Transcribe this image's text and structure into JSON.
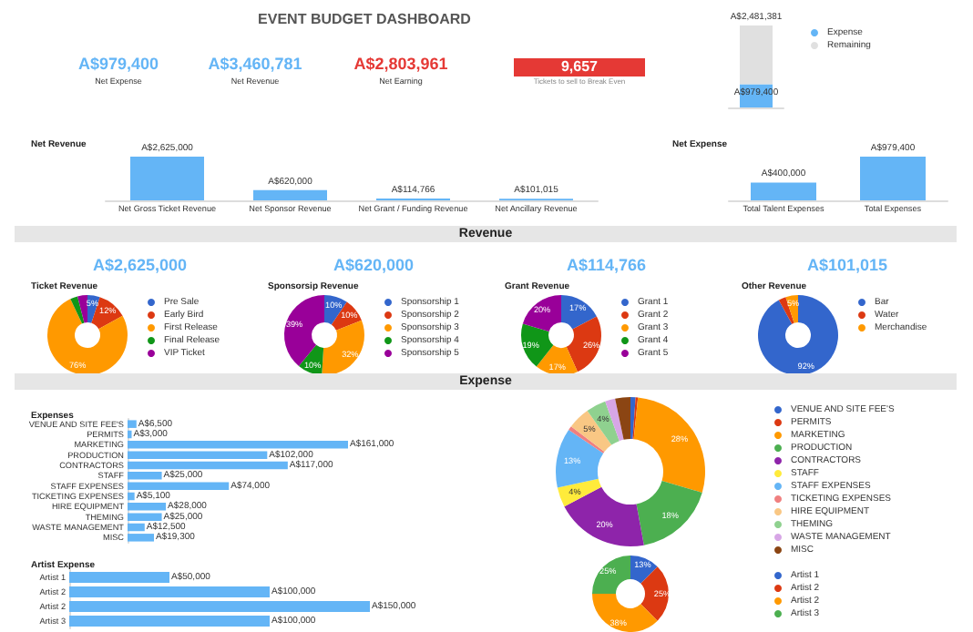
{
  "chart_data": [
    {
      "type": "other",
      "title": "EVENT BUDGET DASHBOARD",
      "annotations": [
        "A$979,400",
        "Net Expense",
        "A$3,460,781",
        "Net Revenue",
        "A$2,803,961",
        "Net Earning",
        "9,657",
        "Tickets to sell to Break Even"
      ]
    },
    {
      "type": "bar",
      "stacked": true,
      "categories": [
        null
      ],
      "legend": "right",
      "series": [
        {
          "name": "Expense",
          "color": "#64b5f6",
          "values": [
            979400
          ],
          "value_labels": [
            "A$979,400"
          ]
        },
        {
          "name": "Remaining",
          "color": "#e0e0e0",
          "values": [
            2481381
          ],
          "value_labels": [
            "A$2,481,381"
          ]
        }
      ]
    },
    {
      "type": "bar",
      "title": "Net Revenue",
      "categories": [
        "Net Gross Ticket Revenue",
        "Net Sponsor Revenue",
        "Net Grant / Funding Revenue",
        "Net Ancillary Revenue"
      ],
      "values": [
        2625000,
        620000,
        114766,
        101015
      ],
      "color": "#64b5f6",
      "value_labels": [
        "A$2,625,000",
        "A$620,000",
        "A$114,766",
        "A$101,015"
      ]
    },
    {
      "type": "bar",
      "title": "Net Expense",
      "categories": [
        "Total Talent Expenses",
        "Total Expenses"
      ],
      "values": [
        400000,
        979400
      ],
      "color": "#64b5f6",
      "value_labels": [
        "A$400,000",
        "A$979,400"
      ]
    },
    {
      "type": "other",
      "title": "Revenue"
    },
    {
      "type": "donut",
      "title": "Ticket Revenue",
      "subtitle": "A$2,625,000",
      "legend": "right",
      "categories": [
        "Pre Sale",
        "Early Bird",
        "First Release",
        "Final Release",
        "VIP Ticket"
      ],
      "values": [
        5,
        12,
        76,
        3,
        4
      ],
      "colors": [
        "#3366cc",
        "#dc3912",
        "#ff9900",
        "#109618",
        "#990099"
      ],
      "value_labels": [
        "5%",
        "12%",
        "76%",
        null,
        null
      ]
    },
    {
      "type": "donut",
      "title": "Sponsorsip Revenue",
      "subtitle": "A$620,000",
      "legend": "right",
      "categories": [
        "Sponsorship 1",
        "Sponsorship 2",
        "Sponsorship 3",
        "Sponsorship 4",
        "Sponsorship 5"
      ],
      "values": [
        9.5,
        9.5,
        32,
        10,
        39
      ],
      "colors": [
        "#3366cc",
        "#dc3912",
        "#ff9900",
        "#109618",
        "#990099"
      ],
      "value_labels": [
        "10%",
        "10%",
        "32%",
        "10%",
        "39%"
      ]
    },
    {
      "type": "donut",
      "title": "Grant Revenue",
      "subtitle": "A$114,766",
      "legend": "right",
      "categories": [
        "Grant 1",
        "Grant 2",
        "Grant 3",
        "Grant 4",
        "Grant 5"
      ],
      "values": [
        17.3,
        26,
        17.3,
        19,
        20.4
      ],
      "colors": [
        "#3366cc",
        "#dc3912",
        "#ff9900",
        "#109618",
        "#990099"
      ],
      "value_labels": [
        "17%",
        "26%",
        "17%",
        "19%",
        "20%"
      ]
    },
    {
      "type": "donut",
      "title": "Other Revenue",
      "subtitle": "A$101,015",
      "legend": "right",
      "categories": [
        "Bar",
        "Water",
        "Merchandise"
      ],
      "values": [
        92,
        3,
        5
      ],
      "colors": [
        "#3366cc",
        "#dc3912",
        "#ff9900"
      ],
      "value_labels": [
        "92%",
        null,
        "5%"
      ]
    },
    {
      "type": "other",
      "title": "Expense"
    },
    {
      "type": "bar",
      "orientation": "horizontal",
      "title": "Expenses",
      "categories": [
        "VENUE AND SITE FEE'S",
        "PERMITS",
        "MARKETING",
        "PRODUCTION",
        "CONTRACTORS",
        "STAFF",
        "STAFF EXPENSES",
        "TICKETING EXPENSES",
        "HIRE EQUIPMENT",
        "THEMING",
        "WASTE MANAGEMENT",
        "MISC"
      ],
      "values": [
        6500,
        3000,
        161000,
        102000,
        117000,
        25000,
        74000,
        5100,
        28000,
        25000,
        12500,
        19300
      ],
      "color": "#64b5f6",
      "value_labels": [
        "A$6,500",
        "A$3,000",
        "A$161,000",
        "A$102,000",
        "A$117,000",
        "A$25,000",
        "A$74,000",
        "A$5,100",
        "A$28,000",
        "A$25,000",
        "A$12,500",
        "A$19,300"
      ]
    },
    {
      "type": "donut",
      "legend": "right",
      "categories": [
        "VENUE AND SITE FEE'S",
        "PERMITS",
        "MARKETING",
        "PRODUCTION",
        "CONTRACTORS",
        "STAFF",
        "STAFF EXPENSES",
        "TICKETING EXPENSES",
        "HIRE EQUIPMENT",
        "THEMING",
        "WASTE MANAGEMENT",
        "MISC"
      ],
      "values": [
        1.1,
        0.5,
        27.9,
        17.6,
        20.2,
        4.3,
        12.9,
        0.9,
        4.8,
        4.3,
        2.2,
        3.3
      ],
      "colors": [
        "#3366cc",
        "#dc3912",
        "#ff9900",
        "#4caf50",
        "#8e24aa",
        "#ffeb3b",
        "#64b5f6",
        "#f08080",
        "#f9c784",
        "#8fd18f",
        "#d7a6e6",
        "#8b4513"
      ],
      "value_labels": [
        null,
        null,
        "28%",
        "18%",
        "20%",
        "4%",
        "13%",
        null,
        "5%",
        "4%",
        null,
        null
      ]
    },
    {
      "type": "bar",
      "orientation": "horizontal",
      "title": "Artist Expense",
      "categories": [
        "Artist 1",
        "Artist 2",
        "Artist 2",
        "Artist 3"
      ],
      "values": [
        50000,
        100000,
        150000,
        100000
      ],
      "color": "#64b5f6",
      "value_labels": [
        "A$50,000",
        "A$100,000",
        "A$150,000",
        "A$100,000"
      ]
    },
    {
      "type": "donut",
      "legend": "right",
      "categories": [
        "Artist 1",
        "Artist 2",
        "Artist 2",
        "Artist 3"
      ],
      "values": [
        12.5,
        25,
        37.5,
        25
      ],
      "colors": [
        "#3366cc",
        "#dc3912",
        "#ff9900",
        "#4caf50"
      ],
      "value_labels": [
        "13%",
        "25%",
        "38%",
        "25%"
      ]
    }
  ]
}
